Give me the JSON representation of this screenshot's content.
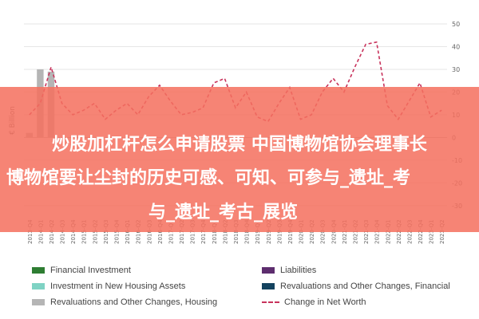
{
  "chart_data": {
    "type": "bar",
    "ylabel": "€ Billion",
    "ylim": [
      -35,
      50
    ],
    "yticks": [
      50,
      40,
      30,
      20,
      10,
      0,
      -10,
      -20,
      -30
    ],
    "categories": [
      "2013-Q4",
      "2014-Q1",
      "2014-Q2",
      "2014-Q3",
      "2014-Q4",
      "2015-Q1",
      "2015-Q2",
      "2015-Q3",
      "2015-Q4",
      "2016-Q1",
      "2016-Q2",
      "2016-Q3",
      "2016-Q4",
      "2017-Q1",
      "2017-Q2",
      "2017-Q3",
      "2017-Q4",
      "2018-Q1",
      "2018-Q2",
      "2018-Q3",
      "2018-Q4",
      "2019-Q1",
      "2019-Q2",
      "2019-Q3",
      "2019-Q4",
      "2020-Q1",
      "2020-Q2",
      "2020-Q3",
      "2020-Q4",
      "2021-Q1",
      "2021-Q2",
      "2021-Q3",
      "2021-Q4",
      "2022-Q1",
      "2022-Q2",
      "2022-Q3",
      "2022-Q4",
      "2023-Q1",
      "2023-Q2"
    ],
    "series": [
      {
        "name": "Financial Investment",
        "color": "#2e7d32",
        "values": [
          0,
          0,
          0,
          0,
          0,
          0,
          0,
          0,
          0,
          0,
          0,
          0,
          0,
          0,
          0,
          0,
          0,
          0,
          0,
          0,
          0,
          0,
          0,
          0,
          0,
          0,
          0,
          0,
          0,
          0,
          0,
          0,
          0,
          0,
          0,
          0,
          0,
          0,
          0
        ]
      },
      {
        "name": "Investment in New Housing Assets",
        "color": "#7fd3c4",
        "values": [
          0,
          0,
          0,
          0,
          0,
          0,
          0,
          0,
          0,
          0,
          0,
          0,
          0,
          0,
          0,
          0,
          0,
          0,
          0,
          0,
          0,
          0,
          0,
          0,
          0,
          0,
          0,
          0,
          0,
          0,
          0,
          0,
          0,
          0,
          0,
          0,
          0,
          0,
          0
        ]
      },
      {
        "name": "Revaluations and Other Changes, Housing",
        "color": "#b5b5b5",
        "values": [
          2,
          30,
          29,
          0,
          0,
          0,
          0,
          0,
          0,
          0,
          0,
          0,
          0,
          0,
          0,
          0,
          0,
          0,
          0,
          0,
          0,
          0,
          0,
          0,
          0,
          0,
          0,
          0,
          0,
          0,
          0,
          0,
          0,
          0,
          0,
          0,
          0,
          0,
          0
        ]
      },
      {
        "name": "Liabilities",
        "color": "#5d2d6e",
        "values": [
          0,
          0,
          0,
          0,
          0,
          0,
          0,
          0,
          0,
          0,
          0,
          0,
          0,
          0,
          0,
          0,
          0,
          0,
          0,
          0,
          0,
          0,
          0,
          0,
          0,
          0,
          0,
          0,
          0,
          0,
          0,
          0,
          0,
          0,
          0,
          0,
          0,
          0,
          0
        ]
      },
      {
        "name": "Revaluations and Other Changes, Financial",
        "color": "#14435f",
        "values": [
          0,
          0,
          0,
          0,
          0,
          0,
          0,
          0,
          0,
          0,
          0,
          0,
          0,
          0,
          0,
          0,
          0,
          0,
          0,
          0,
          0,
          0,
          0,
          0,
          0,
          0,
          0,
          0,
          0,
          0,
          0,
          0,
          0,
          0,
          0,
          0,
          0,
          0,
          0
        ]
      },
      {
        "name": "Change in Net Worth",
        "type": "line",
        "color": "#c8335c",
        "values": [
          10,
          15,
          31,
          15,
          10,
          12,
          15,
          8,
          12,
          15,
          10,
          18,
          23,
          16,
          10,
          11,
          13,
          24,
          26,
          13,
          20,
          9,
          7,
          15,
          22,
          8,
          10,
          20,
          26,
          20,
          31,
          41,
          42,
          14,
          8,
          16,
          24,
          9,
          12
        ]
      }
    ]
  },
  "banner": {
    "line1": "炒股加杠杆怎么申请股票 中国博物馆协会理事长",
    "line2": "博物馆要让尘封的历史可感、可知、可参与_遗址_考",
    "line3": "与_遗址_考古_展览"
  },
  "legend": [
    {
      "label": "Financial Investment",
      "kind": "bar",
      "color": "#2e7d32"
    },
    {
      "label": "Liabilities",
      "kind": "bar",
      "color": "#5d2d6e"
    },
    {
      "label": "Investment in New Housing Assets",
      "kind": "bar",
      "color": "#7fd3c4"
    },
    {
      "label": "Revaluations and Other Changes, Financial",
      "kind": "bar",
      "color": "#14435f"
    },
    {
      "label": "Revaluations and Other Changes, Housing",
      "kind": "bar",
      "color": "#b5b5b5"
    },
    {
      "label": "Change in Net Worth",
      "kind": "line",
      "color": "#c8335c"
    }
  ]
}
